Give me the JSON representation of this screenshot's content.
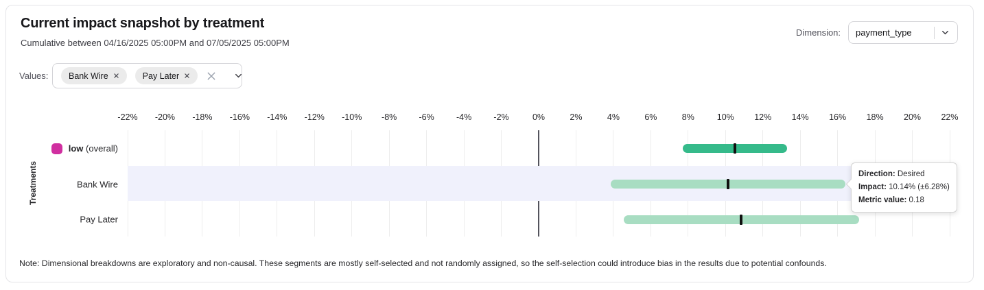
{
  "header": {
    "title": "Current impact snapshot by treatment",
    "subtitle": "Cumulative between 04/16/2025 05:00PM and 07/05/2025 05:00PM",
    "dimension_label": "Dimension:",
    "dimension_value": "payment_type"
  },
  "filters": {
    "values_label": "Values:",
    "chips": [
      {
        "label": "Bank Wire"
      },
      {
        "label": "Pay Later"
      }
    ]
  },
  "chart_data": {
    "type": "bar",
    "subtype": "horizontal_interval",
    "ylabel": "Treatments",
    "x_axis": {
      "min": -22,
      "max": 22,
      "step": 2,
      "suffix": "%"
    },
    "rows": [
      {
        "name": "low-overall",
        "label_bold": "low",
        "label_rest": "(overall)",
        "swatch_color": "#d02fa0",
        "impact_pct": 10.5,
        "ci_low_pct": 7.7,
        "ci_high_pct": 13.3,
        "bar_color": "#35ba8a",
        "highlighted": false
      },
      {
        "name": "bank-wire",
        "label": "Bank Wire",
        "impact_pct": 10.14,
        "ci_low_pct": 3.86,
        "ci_high_pct": 16.42,
        "bar_color": "#a8ddc2",
        "highlighted": true
      },
      {
        "name": "pay-later",
        "label": "Pay Later",
        "impact_pct": 10.82,
        "ci_low_pct": 4.55,
        "ci_high_pct": 17.15,
        "bar_color": "#a8ddc2",
        "highlighted": false
      }
    ],
    "colors": {
      "bar_dark_green": "#35ba8a",
      "bar_light_green": "#a8ddc2",
      "swatch_magenta": "#d02fa0",
      "row_highlight": "#f0f1fc",
      "point_marker": "#101010"
    }
  },
  "tooltip": {
    "direction_label": "Direction:",
    "direction_value": "Desired",
    "impact_label": "Impact:",
    "impact_value": "10.14% (±6.28%)",
    "metric_label": "Metric value:",
    "metric_value": "0.18"
  },
  "note": "Note: Dimensional breakdowns are exploratory and non-causal. These segments are mostly self-selected and not randomly assigned, so the self-selection could introduce bias in the results due to potential confounds."
}
